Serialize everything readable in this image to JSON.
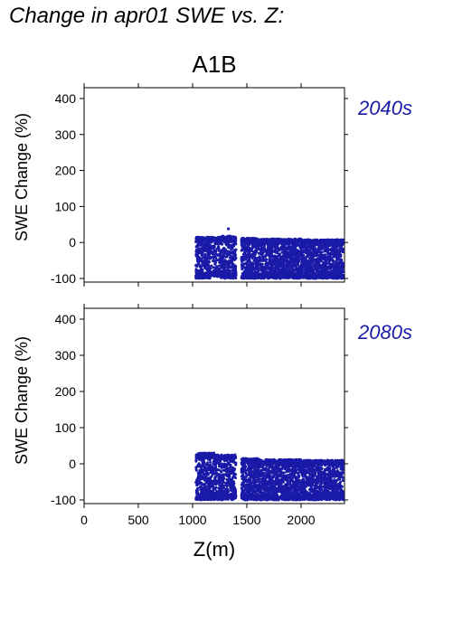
{
  "page": {
    "title": "Change in apr01 SWE vs. Z:"
  },
  "chart_data": [
    {
      "type": "scatter",
      "scenario_title": "A1B",
      "panel_label": "2040s",
      "xlabel": "Z(m)",
      "ylabel": "SWE Change (%)",
      "xlim": [
        0,
        2400
      ],
      "ylim": [
        -110,
        430
      ],
      "xticks": [
        0,
        500,
        1000,
        1500,
        2000
      ],
      "yticks": [
        -100,
        0,
        100,
        200,
        300,
        400
      ],
      "x_tick_labels_shown": false,
      "grid": false,
      "color": "#1a1aa8",
      "point_bands": [
        {
          "x": [
            1030,
            1160
          ],
          "y": [
            -100,
            15
          ],
          "density": 1.0
        },
        {
          "x": [
            1160,
            1260
          ],
          "y": [
            -95,
            15
          ],
          "density": 0.6
        },
        {
          "x": [
            1260,
            1400
          ],
          "y": [
            -100,
            18
          ],
          "density": 0.9
        },
        {
          "x": [
            1450,
            1600
          ],
          "y": [
            -100,
            12
          ],
          "density": 1.0
        },
        {
          "x": [
            1600,
            1700
          ],
          "y": [
            -100,
            10
          ],
          "density": 0.9
        },
        {
          "x": [
            1700,
            2000
          ],
          "y": [
            -100,
            10
          ],
          "density": 1.0
        },
        {
          "x": [
            2000,
            2390
          ],
          "y": [
            -100,
            8
          ],
          "density": 1.0
        }
      ],
      "outliers": [
        {
          "x": 1330,
          "y": 38
        }
      ]
    },
    {
      "type": "scatter",
      "panel_label": "2080s",
      "xlabel": "Z(m)",
      "ylabel": "SWE Change (%)",
      "xlim": [
        0,
        2400
      ],
      "ylim": [
        -110,
        430
      ],
      "xticks": [
        0,
        500,
        1000,
        1500,
        2000
      ],
      "x_tick_labels": [
        "0",
        "500",
        "1000",
        "1500",
        "2000"
      ],
      "yticks": [
        -100,
        0,
        100,
        200,
        300,
        400
      ],
      "grid": false,
      "color": "#1a1aa8",
      "point_bands": [
        {
          "x": [
            1030,
            1200
          ],
          "y": [
            -100,
            30
          ],
          "density": 1.0
        },
        {
          "x": [
            1200,
            1400
          ],
          "y": [
            -100,
            25
          ],
          "density": 0.8
        },
        {
          "x": [
            1450,
            1600
          ],
          "y": [
            -100,
            15
          ],
          "density": 0.9
        },
        {
          "x": [
            1600,
            1700
          ],
          "y": [
            -100,
            12
          ],
          "density": 0.9
        },
        {
          "x": [
            1700,
            2000
          ],
          "y": [
            -100,
            12
          ],
          "density": 1.0
        },
        {
          "x": [
            2000,
            2390
          ],
          "y": [
            -100,
            10
          ],
          "density": 1.0
        }
      ],
      "outliers": []
    }
  ]
}
